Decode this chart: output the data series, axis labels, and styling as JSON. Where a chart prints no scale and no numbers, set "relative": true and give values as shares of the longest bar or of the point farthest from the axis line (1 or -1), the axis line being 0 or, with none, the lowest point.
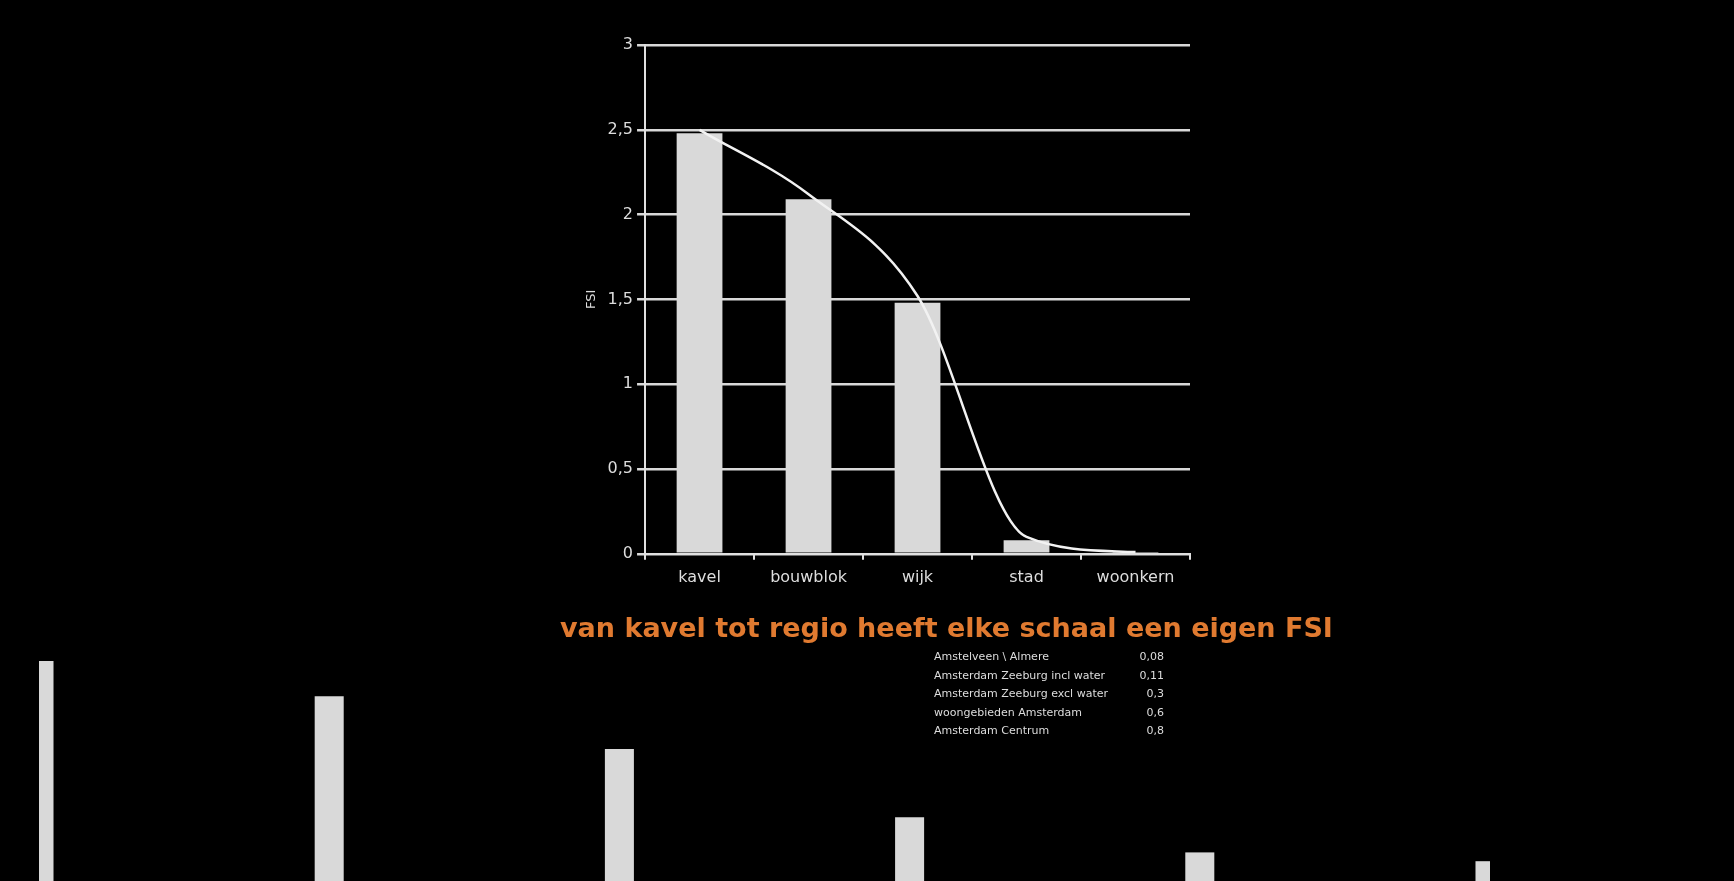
{
  "chart_data": [
    {
      "type": "bar",
      "title": "van kavel tot regio heeft elke schaal een eigen FSI",
      "ylabel": "FSI",
      "categories": [
        "kavel",
        "bouwblok",
        "wijk",
        "stad",
        "woonkern"
      ],
      "series": [
        {
          "type": "bar",
          "color": "#d9d9d9",
          "values": [
            2.48,
            2.09,
            1.48,
            0.08,
            0.01
          ]
        },
        {
          "type": "line",
          "color": "#f2f2f2",
          "marker": "none",
          "values": [
            2.5,
            2.12,
            1.52,
            0.1,
            0.01
          ]
        }
      ],
      "ylim": [
        0,
        3
      ],
      "yticks": [
        0,
        {
          "value": 0.5,
          "label": "0,5"
        },
        1,
        {
          "value": 1.5,
          "label": "1,5"
        },
        2,
        {
          "value": 2.5,
          "label": "2,5"
        },
        3
      ],
      "grid": "y",
      "legend": false,
      "annotations": [
        "Amstelveen \\ Almere  0,08",
        "Amsterdam Zeeburg incl water  0,11",
        "Amsterdam Zeeburg excl water  0,3",
        "woongebieden Amsterdam  0,6",
        "Amsterdam Centrum  0,8"
      ]
    },
    {
      "type": "bar",
      "relative": true,
      "categories": [
        null,
        null,
        null,
        null,
        null,
        null
      ],
      "values": [
        1,
        0.84,
        0.6,
        0.29,
        0.13,
        0.09
      ],
      "color": "#d9d9d9",
      "legend": false,
      "grid": false
    }
  ]
}
